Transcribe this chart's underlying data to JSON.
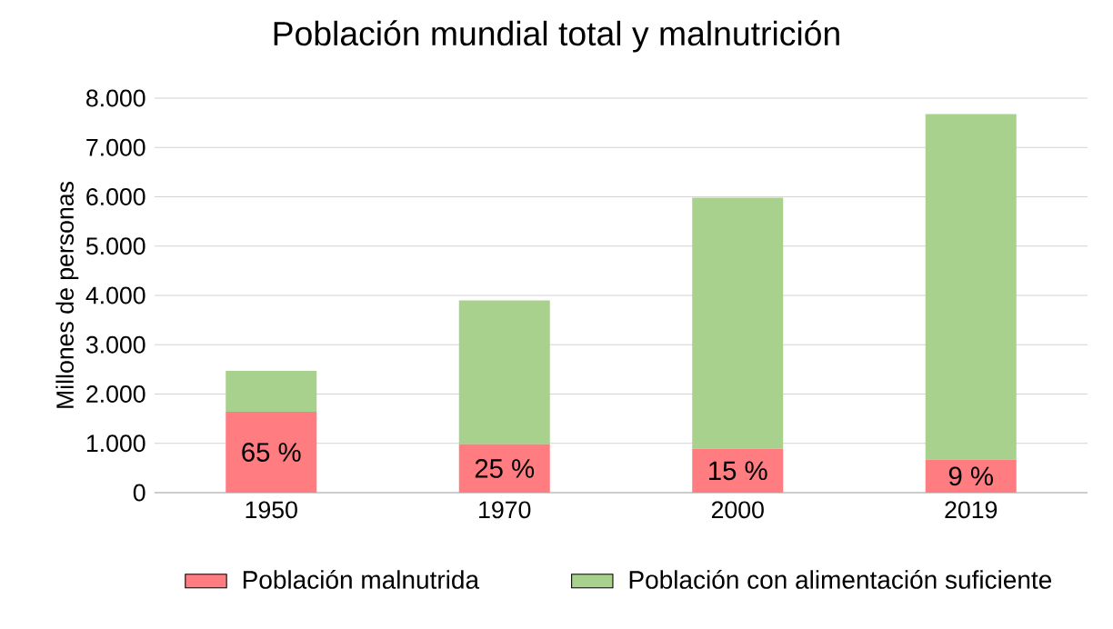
{
  "chart_data": {
    "type": "bar",
    "title": "Población mundial total y malnutrición",
    "ylabel": "Millones de personas",
    "categories": [
      "1950",
      "1970",
      "2000",
      "2019"
    ],
    "stacked": true,
    "series": [
      {
        "name": "Población malnutrida",
        "color": "#ff7c80",
        "values": [
          1640,
          980,
          890,
          670
        ]
      },
      {
        "name": "Población con alimentación suficiente",
        "color": "#a9d18e",
        "values": [
          830,
          2920,
          5090,
          7010
        ]
      }
    ],
    "annotations": [
      "65 %",
      "25 %",
      "15 %",
      "9 %"
    ],
    "ylim": [
      0,
      8000
    ],
    "yticks": [
      0,
      {
        "value": 1000,
        "label": "1.000"
      },
      {
        "value": 2000,
        "label": "2.000"
      },
      {
        "value": 3000,
        "label": "3.000"
      },
      {
        "value": 4000,
        "label": "4.000"
      },
      {
        "value": 5000,
        "label": "5.000"
      },
      {
        "value": 6000,
        "label": "6.000"
      },
      {
        "value": 7000,
        "label": "7.000"
      },
      {
        "value": 8000,
        "label": "8.000"
      }
    ],
    "grid": "y",
    "legend": "bottom"
  }
}
